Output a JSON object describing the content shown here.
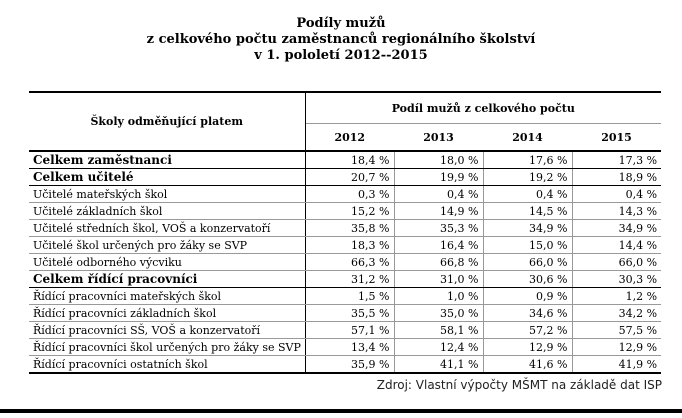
{
  "title": {
    "line1": "Podíly mužů",
    "line2": "z celkového počtu zaměstnanců regionálního školství",
    "line3": "v 1. pololetí 2012--2015"
  },
  "table": {
    "row_header": "Školy odměňující platem",
    "group_header": "Podíl mužů z celkového počtu",
    "years": [
      "2012",
      "2013",
      "2014",
      "2015"
    ],
    "rows": [
      {
        "label": "Celkem zaměstnanci",
        "bold": true,
        "values": [
          "18,4 %",
          "18,0 %",
          "17,6 %",
          "17,3 %"
        ]
      },
      {
        "label": "Celkem učitelé",
        "bold": true,
        "values": [
          "20,7 %",
          "19,9 %",
          "19,2 %",
          "18,9 %"
        ]
      },
      {
        "label": "Učitelé mateřských škol",
        "bold": false,
        "values": [
          "0,3 %",
          "0,4 %",
          "0,4 %",
          "0,4 %"
        ]
      },
      {
        "label": "Učitelé základních škol",
        "bold": false,
        "values": [
          "15,2 %",
          "14,9 %",
          "14,5 %",
          "14,3 %"
        ]
      },
      {
        "label": "Učitelé středních škol, VOŠ a konzervatoří",
        "bold": false,
        "values": [
          "35,8 %",
          "35,3 %",
          "34,9 %",
          "34,9 %"
        ]
      },
      {
        "label": "Učitelé škol určených pro žáky se SVP",
        "bold": false,
        "values": [
          "18,3 %",
          "16,4 %",
          "15,0 %",
          "14,4 %"
        ]
      },
      {
        "label": "Učitelé odborného výcviku",
        "bold": false,
        "values": [
          "66,3 %",
          "66,8 %",
          "66,0 %",
          "66,0 %"
        ]
      },
      {
        "label": "Celkem řídící pracovníci",
        "bold": true,
        "values": [
          "31,2 %",
          "31,0 %",
          "30,6 %",
          "30,3 %"
        ]
      },
      {
        "label": "Řídící pracovníci mateřských škol",
        "bold": false,
        "values": [
          "1,5 %",
          "1,0 %",
          "0,9 %",
          "1,2 %"
        ]
      },
      {
        "label": "Řídící pracovníci základních škol",
        "bold": false,
        "values": [
          "35,5 %",
          "35,0 %",
          "34,6 %",
          "34,2 %"
        ]
      },
      {
        "label": "Řídící pracovníci SŠ, VOŠ a konzervatoří",
        "bold": false,
        "values": [
          "57,1 %",
          "58,1 %",
          "57,2 %",
          "57,5 %"
        ]
      },
      {
        "label": "Řídící pracovníci škol určených pro žáky se SVP",
        "bold": false,
        "values": [
          "13,4 %",
          "12,4 %",
          "12,9 %",
          "12,9 %"
        ]
      },
      {
        "label": "Řídící pracovníci ostatních škol",
        "bold": false,
        "values": [
          "35,9 %",
          "41,1 %",
          "41,6 %",
          "41,9 %"
        ]
      }
    ]
  },
  "source": "Zdroj: Vlastní výpočty MŠMT na základě dat ISP"
}
